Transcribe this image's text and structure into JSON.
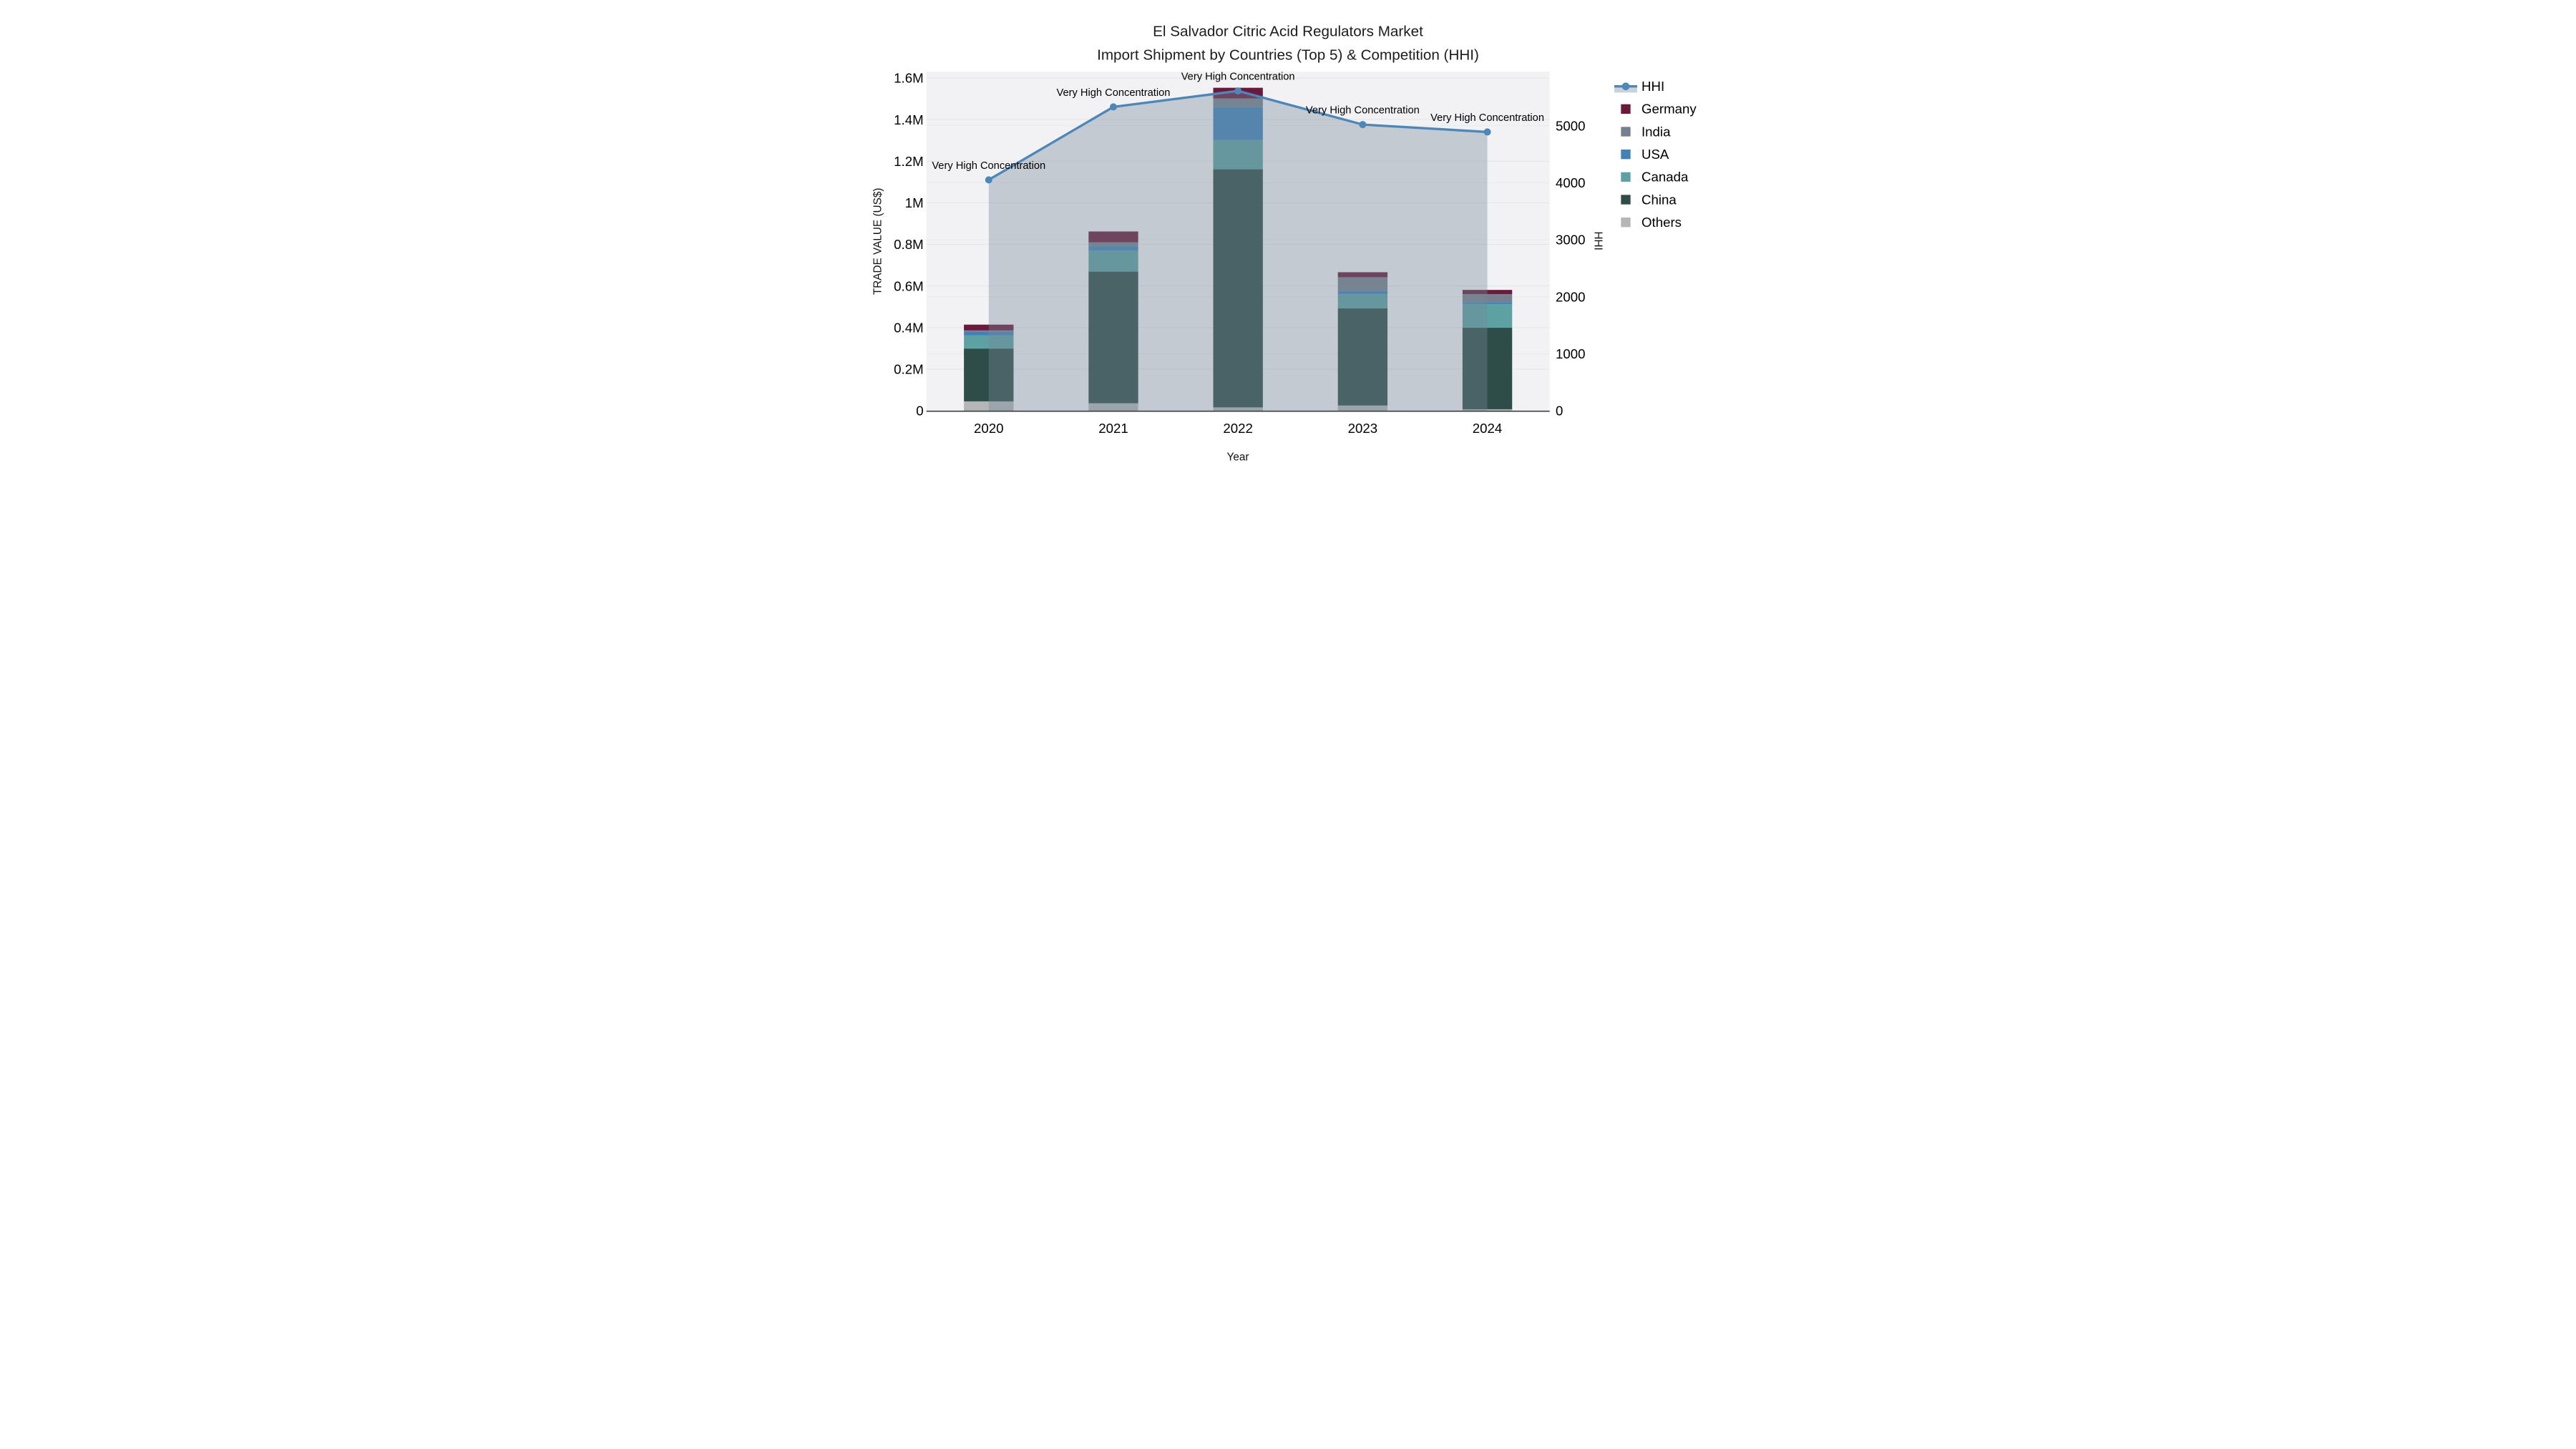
{
  "title": {
    "line1": "El Salvador Citric Acid Regulators Market",
    "line2": "Import Shipment by Countries (Top 5) & Competition (HHI)"
  },
  "axes": {
    "x_title": "Year",
    "y_left_title": "TRADE VALUE (US$)",
    "y_right_title": "HHI",
    "x_ticks": [
      "2020",
      "2021",
      "2022",
      "2023",
      "2024"
    ],
    "y_left_ticks": [
      {
        "value": 0,
        "label": "0"
      },
      {
        "value": 200000,
        "label": "0.2M"
      },
      {
        "value": 400000,
        "label": "0.4M"
      },
      {
        "value": 600000,
        "label": "0.6M"
      },
      {
        "value": 800000,
        "label": "0.8M"
      },
      {
        "value": 1000000,
        "label": "1M"
      },
      {
        "value": 1200000,
        "label": "1.2M"
      },
      {
        "value": 1400000,
        "label": "1.4M"
      },
      {
        "value": 1600000,
        "label": "1.6M"
      }
    ],
    "y_right_ticks": [
      {
        "value": 0,
        "label": "0"
      },
      {
        "value": 1000,
        "label": "1000"
      },
      {
        "value": 2000,
        "label": "2000"
      },
      {
        "value": 3000,
        "label": "3000"
      },
      {
        "value": 4000,
        "label": "4000"
      },
      {
        "value": 5000,
        "label": "5000"
      }
    ]
  },
  "legend": {
    "items": [
      {
        "label": "HHI",
        "type": "line",
        "color": "#4d87b9",
        "band": "#cbd1d8"
      },
      {
        "label": "Germany",
        "type": "swatch",
        "color": "#6b1a3d"
      },
      {
        "label": "India",
        "type": "swatch",
        "color": "#76818f"
      },
      {
        "label": "USA",
        "type": "swatch",
        "color": "#4281b8"
      },
      {
        "label": "Canada",
        "type": "swatch",
        "color": "#5da1a2"
      },
      {
        "label": "China",
        "type": "swatch",
        "color": "#2e4d49"
      },
      {
        "label": "Others",
        "type": "swatch",
        "color": "#b4b6b7"
      }
    ]
  },
  "colors": {
    "plot_background": "#f2f2f4",
    "grid_left": "#e3e4e7",
    "grid_right": "#e9eaec",
    "axis_line": "#3f3f3f",
    "hhi_line": "#4d87b9",
    "hhi_area_fill": "rgba(119,136,153,0.38)"
  },
  "chart_data": {
    "type": "combo: stacked bar (left axis) + line with area fill (right axis)",
    "categories": [
      "2020",
      "2021",
      "2022",
      "2023",
      "2024"
    ],
    "bar_value_unit": "US$ trade value",
    "series": [
      {
        "name": "Others",
        "color": "#b4b6b7",
        "values": [
          45000,
          36000,
          16000,
          25000,
          7000
        ]
      },
      {
        "name": "China",
        "color": "#2e4d49",
        "values": [
          254000,
          633000,
          1145000,
          467000,
          392000
        ]
      },
      {
        "name": "Canada",
        "color": "#5da1a2",
        "values": [
          64000,
          102000,
          141000,
          68000,
          114000
        ]
      },
      {
        "name": "USA",
        "color": "#4281b8",
        "values": [
          17000,
          20000,
          158000,
          16000,
          9000
        ]
      },
      {
        "name": "India",
        "color": "#76818f",
        "values": [
          6000,
          19000,
          42000,
          66000,
          39000
        ]
      },
      {
        "name": "Germany",
        "color": "#6b1a3d",
        "values": [
          28000,
          52000,
          51000,
          24000,
          20000
        ]
      }
    ],
    "stack_totals": [
      414000,
      862000,
      1553000,
      666000,
      581000
    ],
    "line_series": {
      "name": "HHI",
      "axis": "right",
      "values": [
        4050,
        5330,
        5610,
        5020,
        4890
      ],
      "color": "#4d87b9",
      "area_fill": "rgba(119,136,153,0.38)"
    },
    "annotations": [
      "Very High Concentration",
      "Very High Concentration",
      "Very High Concentration",
      "Very High Concentration",
      "Very High Concentration"
    ],
    "title": "El Salvador Citric Acid Regulators Market — Import Shipment by Countries (Top 5) & Competition (HHI)",
    "xlabel": "Year",
    "ylabel_left": "TRADE VALUE (US$)",
    "ylabel_right": "HHI",
    "ylim_left": [
      0,
      1600000
    ],
    "ylim_right": [
      0,
      5950
    ],
    "grid": true,
    "legend_position": "right"
  }
}
